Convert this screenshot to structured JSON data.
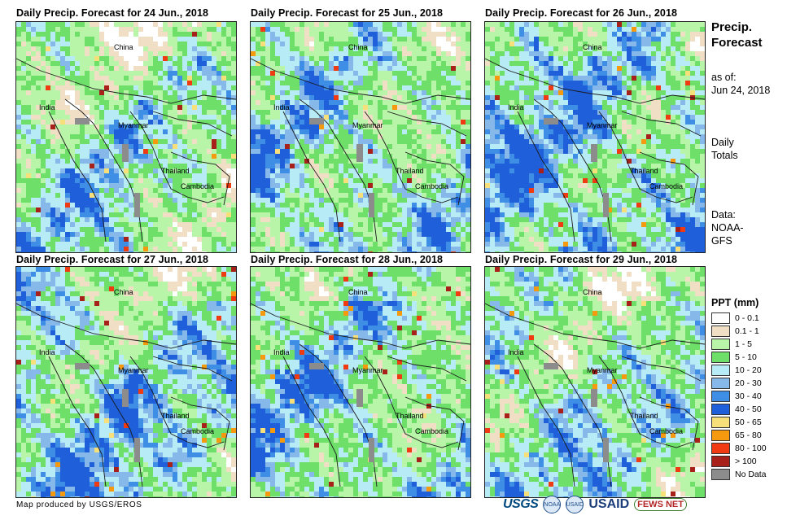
{
  "panels": [
    {
      "title": "Daily Precip. Forecast for 24 Jun., 2018",
      "wet": 0.35,
      "seed": 11
    },
    {
      "title": "Daily Precip. Forecast for 25 Jun., 2018",
      "wet": 0.45,
      "seed": 23
    },
    {
      "title": "Daily Precip. Forecast for 26 Jun., 2018",
      "wet": 0.55,
      "seed": 37
    },
    {
      "title": "Daily Precip. Forecast for 27 Jun., 2018",
      "wet": 0.5,
      "seed": 49
    },
    {
      "title": "Daily Precip. Forecast for 28 Jun., 2018",
      "wet": 0.45,
      "seed": 61
    },
    {
      "title": "Daily Precip. Forecast for 29 Jun., 2018",
      "wet": 0.4,
      "seed": 73
    }
  ],
  "map_labels": {
    "china": "China",
    "india": "India",
    "myanmar": "Myanmar",
    "thailand": "Thailand",
    "cambodia": "Cambodia"
  },
  "side": {
    "title_line1": "Precip.",
    "title_line2": "Forecast",
    "asof_label": "as of:",
    "asof_date": "Jun 24, 2018",
    "totals_line1": "Daily",
    "totals_line2": "Totals",
    "data_label": "Data:",
    "data_source_line1": "NOAA-",
    "data_source_line2": "GFS"
  },
  "legend": {
    "title": "PPT (mm)",
    "items": [
      {
        "label": "0 - 0.1",
        "color": "#ffffff"
      },
      {
        "label": "0.1 - 1",
        "color": "#f0dfc4"
      },
      {
        "label": "1 - 5",
        "color": "#b8f5a8"
      },
      {
        "label": "5 - 10",
        "color": "#6ee06a"
      },
      {
        "label": "10 - 20",
        "color": "#b7ecf6"
      },
      {
        "label": "20 - 30",
        "color": "#86b8ea"
      },
      {
        "label": "30 - 40",
        "color": "#3e8ee6"
      },
      {
        "label": "40 - 50",
        "color": "#1f5fd9"
      },
      {
        "label": "50 - 65",
        "color": "#f7e07a"
      },
      {
        "label": "65 - 80",
        "color": "#f59a0e"
      },
      {
        "label": "80 - 100",
        "color": "#f03a12"
      },
      {
        "label": "> 100",
        "color": "#a8201a"
      },
      {
        "label": "No Data",
        "color": "#8c8c8c"
      }
    ]
  },
  "credit": "Map produced by USGS/EROS",
  "logos": {
    "usgs": "USGS",
    "noaa": "NOAA",
    "usaid_seal": "USAID",
    "usaid": "USAID",
    "fews": "FEWS NET"
  }
}
